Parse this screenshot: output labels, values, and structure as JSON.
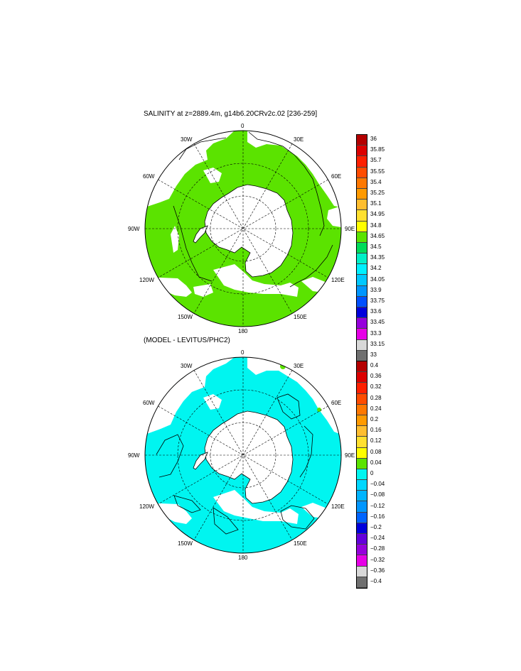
{
  "panels": [
    {
      "title": "SALINITY at z=2889.4m, g14b6.20CRv2c.02 [236-259]",
      "lon_labels": {
        "top": "0",
        "bottom": "180",
        "upper_left": "30W",
        "upper_right": "30E",
        "left_upper": "60W",
        "right_upper": "60E",
        "left": "90W",
        "right": "90E",
        "left_lower": "120W",
        "right_lower": "120E",
        "lower_left": "150W",
        "lower_right": "150E"
      },
      "colorbar": {
        "labels": [
          "36",
          "35.85",
          "35.7",
          "35.55",
          "35.4",
          "35.25",
          "35.1",
          "34.95",
          "34.8",
          "34.65",
          "34.5",
          "34.35",
          "34.2",
          "34.05",
          "33.9",
          "33.75",
          "33.6",
          "33.45",
          "33.3",
          "33.15",
          "33"
        ],
        "colors": [
          "#b40000",
          "#dc0000",
          "#ff2000",
          "#ff4c00",
          "#ff7800",
          "#ff9a00",
          "#ffbe30",
          "#ffe030",
          "#ffff00",
          "#5be300",
          "#00dc5a",
          "#00f0c8",
          "#00f0ff",
          "#00c8ff",
          "#0096ff",
          "#0050ff",
          "#0000dc",
          "#9600dc",
          "#e600e6",
          "#d8d8d8",
          "#707070"
        ]
      },
      "fill": {
        "ocean": "#5be300",
        "patch": "#ffffff",
        "land": "#ffffff"
      }
    },
    {
      "title": "(MODEL - LEVITUS/PHC2)",
      "lon_labels": {
        "top": "0",
        "bottom": "180",
        "upper_left": "30W",
        "upper_right": "30E",
        "left_upper": "60W",
        "right_upper": "60E",
        "left": "90W",
        "right": "90E",
        "left_lower": "120W",
        "right_lower": "120E",
        "lower_left": "150W",
        "lower_right": "150E"
      },
      "colorbar": {
        "labels": [
          "0.4",
          "0.36",
          "0.32",
          "0.28",
          "0.24",
          "0.2",
          "0.16",
          "0.12",
          "0.08",
          "0.04",
          "0",
          "−0.04",
          "−0.08",
          "−0.12",
          "−0.16",
          "−0.2",
          "−0.24",
          "−0.28",
          "−0.32",
          "−0.36",
          "−0.4"
        ],
        "colors": [
          "#b40000",
          "#dc0000",
          "#ff2000",
          "#ff4c00",
          "#ff7800",
          "#ff9a00",
          "#ffbe30",
          "#ffe030",
          "#ffff00",
          "#5be300",
          "#00f5f0",
          "#00d7ff",
          "#00b4ff",
          "#0096ff",
          "#0064ff",
          "#0000dc",
          "#6400dc",
          "#9600dc",
          "#e600e6",
          "#d8d8d8",
          "#707070"
        ]
      },
      "fill": {
        "ocean": "#00f5f0",
        "patch": "#ffffff",
        "land": "#ffffff"
      }
    }
  ]
}
